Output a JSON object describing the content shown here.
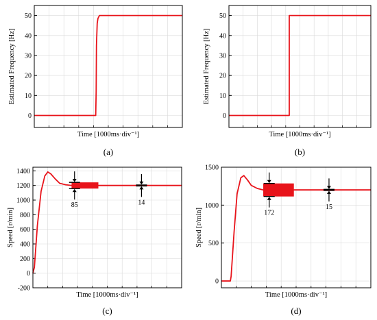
{
  "figure": {
    "trace_color": "#e8141b",
    "axis_color": "#000000",
    "grid_color": "#d9d9d9",
    "background": "#ffffff"
  },
  "chart_data": [
    {
      "type": "line",
      "panel_label": "(a)",
      "xlabel": "Time [1000ms·div⁻¹]",
      "ylabel": "Estimated Frequency [Hz]",
      "xlim": [
        0,
        10
      ],
      "ylim": [
        -6,
        55
      ],
      "yticks": [
        0,
        10,
        20,
        30,
        40,
        50
      ],
      "grid": true,
      "series": [
        {
          "x": [
            0,
            4.15,
            4.18,
            4.2,
            4.25,
            4.3,
            4.4,
            10
          ],
          "values": [
            0,
            0,
            12,
            35,
            46,
            48.5,
            50,
            50
          ]
        }
      ]
    },
    {
      "type": "line",
      "panel_label": "(b)",
      "xlabel": "Time [1000ms·div⁻¹]",
      "ylabel": "Estimated Frequency [Hz]",
      "xlim": [
        0,
        10
      ],
      "ylim": [
        -6,
        55
      ],
      "yticks": [
        0,
        10,
        20,
        30,
        40,
        50
      ],
      "grid": true,
      "series": [
        {
          "x": [
            0,
            4.25,
            4.25,
            10
          ],
          "values": [
            0,
            0,
            50,
            50
          ]
        }
      ]
    },
    {
      "type": "line",
      "panel_label": "(c)",
      "xlabel": "Time [1000ms·div⁻¹]",
      "ylabel": "Speed [r/min]",
      "xlim": [
        0,
        10
      ],
      "ylim": [
        -200,
        1450
      ],
      "yticks": [
        -200,
        0,
        200,
        400,
        600,
        800,
        1000,
        1200,
        1400
      ],
      "grid": true,
      "setpoint": 1200,
      "series": [
        {
          "x": [
            0,
            0.1,
            0.3,
            0.55,
            0.8,
            1.0,
            1.2,
            1.5,
            1.8,
            2.2,
            2.6,
            10
          ],
          "values": [
            0,
            80,
            650,
            1120,
            1330,
            1385,
            1360,
            1290,
            1230,
            1210,
            1200,
            1200
          ]
        }
      ],
      "ripple_bands": [
        {
          "x": [
            2.6,
            4.4
          ],
          "amplitude": 85
        },
        {
          "x": [
            4.4,
            10
          ],
          "amplitude": 14
        }
      ],
      "annotations": [
        {
          "label": "85",
          "x": 2.8
        },
        {
          "label": "14",
          "x": 7.3
        }
      ]
    },
    {
      "type": "line",
      "panel_label": "(d)",
      "xlabel": "Time [1000ms·div⁻¹]",
      "ylabel": "Speed [r/min]",
      "xlim": [
        0,
        10
      ],
      "ylim": [
        -90,
        1500
      ],
      "yticks": [
        0,
        500,
        1000,
        1500
      ],
      "grid": true,
      "setpoint": 1200,
      "series": [
        {
          "x": [
            0,
            0.6,
            0.65,
            0.85,
            1.05,
            1.3,
            1.5,
            1.75,
            2.0,
            2.4,
            2.8,
            10
          ],
          "values": [
            0,
            0,
            60,
            650,
            1150,
            1360,
            1390,
            1330,
            1260,
            1220,
            1200,
            1200
          ]
        }
      ],
      "ripple_bands": [
        {
          "x": [
            2.8,
            4.85
          ],
          "amplitude": 172
        },
        {
          "x": [
            4.85,
            10
          ],
          "amplitude": 15
        }
      ],
      "annotations": [
        {
          "label": "172",
          "x": 3.2
        },
        {
          "label": "15",
          "x": 7.2
        }
      ]
    }
  ]
}
